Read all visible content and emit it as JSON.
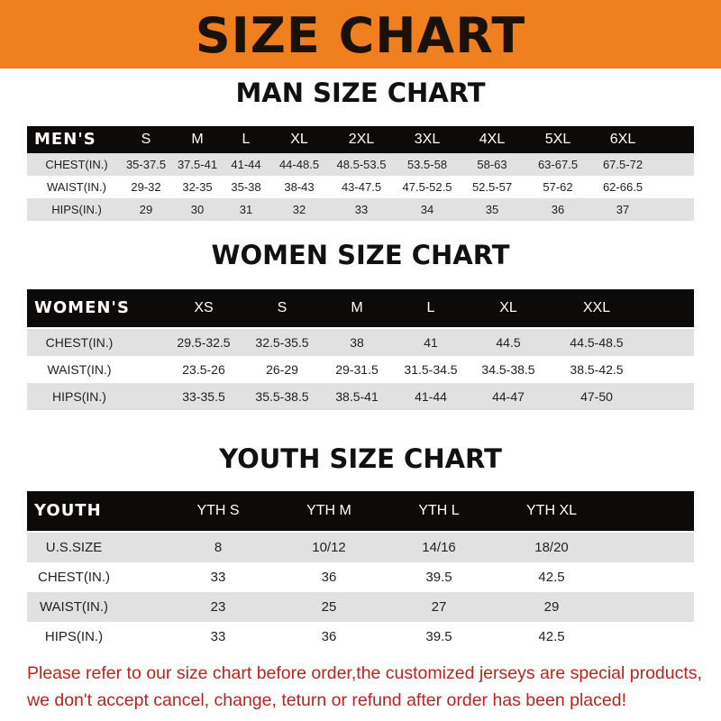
{
  "title": "SIZE CHART",
  "men": {
    "title": "MAN SIZE CHART",
    "headers": [
      "MEN'S",
      "S",
      "M",
      "L",
      "XL",
      "2XL",
      "3XL",
      "4XL",
      "5XL",
      "6XL"
    ],
    "rows": [
      [
        "CHEST(IN.)",
        "35-37.5",
        "37.5-41",
        "41-44",
        "44-48.5",
        "48.5-53.5",
        "53.5-58",
        "58-63",
        "63-67.5",
        "67.5-72"
      ],
      [
        "WAIST(IN.)",
        "29-32",
        "32-35",
        "35-38",
        "38-43",
        "43-47.5",
        "47.5-52.5",
        "52.5-57",
        "57-62",
        "62-66.5"
      ],
      [
        "HIPS(IN.)",
        "29",
        "30",
        "31",
        "32",
        "33",
        "34",
        "35",
        "36",
        "37"
      ]
    ]
  },
  "women": {
    "title": "WOMEN SIZE CHART",
    "headers": [
      "WOMEN'S",
      "XS",
      "S",
      "M",
      "L",
      "XL",
      "XXL"
    ],
    "rows": [
      [
        "CHEST(IN.)",
        "29.5-32.5",
        "32.5-35.5",
        "38",
        "41",
        "44.5",
        "44.5-48.5"
      ],
      [
        "WAIST(IN.)",
        "23.5-26",
        "26-29",
        "29-31.5",
        "31.5-34.5",
        "34.5-38.5",
        "38.5-42.5"
      ],
      [
        "HIPS(IN.)",
        "33-35.5",
        "35.5-38.5",
        "38.5-41",
        "41-44",
        "44-47",
        "47-50"
      ]
    ]
  },
  "youth": {
    "title": "YOUTH SIZE CHART",
    "headers": [
      "YOUTH",
      "YTH S",
      "YTH M",
      "YTH L",
      "YTH XL"
    ],
    "rows": [
      [
        "U.S.SIZE",
        "8",
        "10/12",
        "14/16",
        "18/20"
      ],
      [
        "CHEST(IN.)",
        "33",
        "36",
        "39.5",
        "42.5"
      ],
      [
        "WAIST(IN.)",
        "23",
        "25",
        "27",
        "29"
      ],
      [
        "HIPS(IN.)",
        "33",
        "36",
        "39.5",
        "42.5"
      ]
    ]
  },
  "footer": {
    "line1": "Please refer to our size chart before order,the customized jerseys are special products,",
    "line2": "we don't accept cancel, change, teturn or refund after order has been placed!"
  },
  "colors": {
    "banner": "#f0801f",
    "header_row": "#0d0a0a",
    "stripe": "#e1e1e1",
    "notice": "#b8241f"
  }
}
